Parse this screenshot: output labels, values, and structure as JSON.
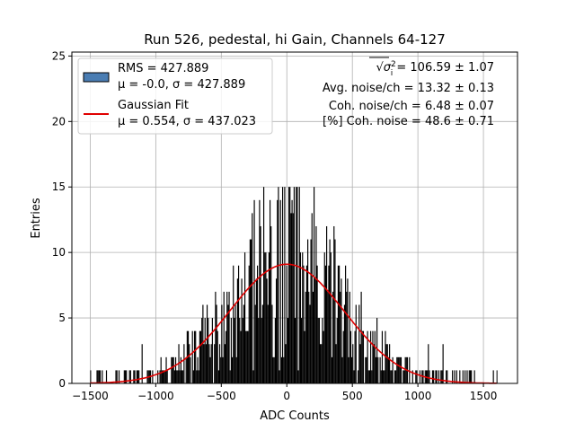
{
  "chart_data": {
    "type": "bar",
    "title": "Run 526, pedestal, hi Gain, Channels 64-127",
    "xlabel": "ADC Counts",
    "ylabel": "Entries",
    "xlim": [
      -1640,
      1760
    ],
    "ylim": [
      0,
      25.3
    ],
    "x_ticks": [
      -1500,
      -1000,
      -500,
      0,
      500,
      1000,
      1500
    ],
    "y_ticks": [
      0,
      5,
      10,
      15,
      20,
      25
    ],
    "grid": true,
    "histogram": {
      "name": "RMS = 427.889",
      "stats_label": "μ = -0.0, σ = 427.889",
      "bins_x_min": -1500,
      "bins_x_max": 1600,
      "bar_color": "#000000",
      "legend_patch_color": "#4a7db3"
    },
    "fit": {
      "name": "Gaussian Fit",
      "label": "μ = 0.554, σ = 437.023",
      "mu": 0.554,
      "sigma": 437.023,
      "amplitude": 9.1,
      "color": "#e00000"
    },
    "legend_position": "top-left",
    "annotations": [
      {
        "prefix": "√σ",
        "sup": "2",
        "sub": "i",
        "text": " = 106.59 ± 1.07"
      },
      {
        "text": "Avg. noise/ch = 13.32 ± 0.13"
      },
      {
        "text": "Coh. noise/ch = 6.48 ± 0.07"
      },
      {
        "text": "[%] Coh. noise = 48.6 ± 0.71"
      }
    ]
  }
}
